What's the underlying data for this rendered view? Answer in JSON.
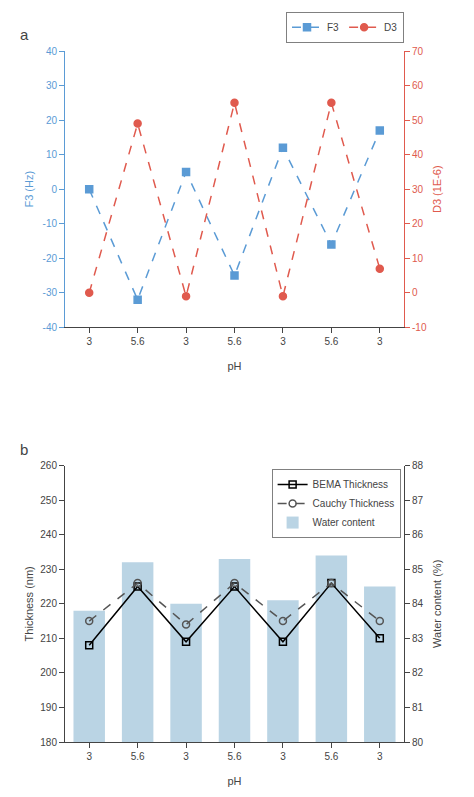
{
  "chart_data": [
    {
      "type": "line",
      "title": "a",
      "categories": [
        "3",
        "5.6",
        "3",
        "5.6",
        "3",
        "5.6",
        "3"
      ],
      "xlabel": "pH",
      "ylabel": "F3 (Hz)",
      "y2label": "D3 (1E-6)",
      "series": [
        {
          "name": "F3",
          "color": "#5b9bd5",
          "values": [
            0,
            -32,
            5,
            -25,
            12,
            -16,
            17
          ],
          "marker": "square",
          "line_style": "dashed"
        },
        {
          "name": "D3",
          "color": "#e05a4e",
          "values": [
            0,
            49,
            -1,
            55,
            -1,
            55,
            7
          ],
          "marker": "circle",
          "line_style": "dashed",
          "axis": "y2"
        }
      ],
      "ylim": [
        -40,
        40
      ],
      "yticks": [
        -40,
        -30,
        -20,
        -10,
        0,
        10,
        20,
        30,
        40
      ],
      "y2lim": [
        -10,
        70
      ],
      "y2ticks": [
        -10,
        0,
        10,
        20,
        30,
        40,
        50,
        60,
        70
      ],
      "grid": false,
      "legend": "upper right"
    },
    {
      "type": "line",
      "title": "b",
      "categories": [
        "3",
        "5.6",
        "3",
        "5.6",
        "3",
        "5.6",
        "3"
      ],
      "xlabel": "pH",
      "ylabel": "Thickness (nm)",
      "y2label": "Water content (%)",
      "series": [
        {
          "name": "BEMA Thickness",
          "color": "#000000",
          "values": [
            208,
            225,
            209,
            225,
            209,
            226,
            210
          ],
          "marker": "square-open",
          "line_style": "solid"
        },
        {
          "name": "Cauchy Thickness",
          "color": "#555555",
          "values": [
            215,
            226,
            214,
            226,
            215,
            226,
            215
          ],
          "marker": "circle-open",
          "line_style": "dashed"
        },
        {
          "name": "Water content",
          "type": "bar",
          "color": "#aecde0",
          "values": [
            83.8,
            85.2,
            84.0,
            85.3,
            84.1,
            85.4,
            84.5
          ],
          "axis": "y2"
        }
      ],
      "ylim": [
        180,
        260
      ],
      "yticks": [
        180,
        190,
        200,
        210,
        220,
        230,
        240,
        250,
        260
      ],
      "y2lim": [
        80,
        88
      ],
      "y2ticks": [
        80,
        81,
        82,
        83,
        84,
        85,
        86,
        87,
        88
      ],
      "grid": false,
      "legend": "upper right"
    }
  ]
}
